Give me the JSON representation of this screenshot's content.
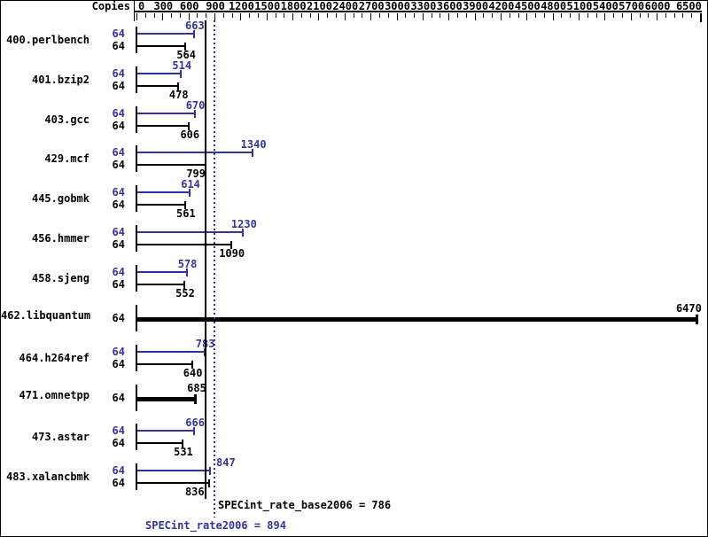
{
  "header": {
    "copies_label": "Copies"
  },
  "footer": {
    "base_result_text": "SPECint_rate_base2006 = 786",
    "peak_result_text": "SPECint_rate2006 = 894"
  },
  "chart_data": {
    "type": "bar",
    "orientation": "horizontal",
    "copies_column_header": "Copies",
    "axis": {
      "position": "top",
      "min": 0,
      "max": 6500,
      "minor_tick_step": 100,
      "major_tick_step": 300,
      "tick_labels": [
        0,
        300,
        600,
        900,
        1200,
        1500,
        1800,
        2100,
        2400,
        2700,
        3000,
        3300,
        3600,
        3900,
        4200,
        4500,
        4800,
        5100,
        5400,
        5700,
        6000,
        6500
      ]
    },
    "series_colors": {
      "peak": "#3333a0",
      "base": "#000000"
    },
    "benchmarks": [
      {
        "name": "400.perlbench",
        "copies": 64,
        "peak": 663,
        "base": 564,
        "bar": "pair"
      },
      {
        "name": "401.bzip2",
        "copies": 64,
        "peak": 514,
        "base": 478,
        "bar": "pair"
      },
      {
        "name": "403.gcc",
        "copies": 64,
        "peak": 670,
        "base": 606,
        "bar": "pair"
      },
      {
        "name": "429.mcf",
        "copies": 64,
        "peak": 1340,
        "base": 799,
        "bar": "pair"
      },
      {
        "name": "445.gobmk",
        "copies": 64,
        "peak": 614,
        "base": 561,
        "bar": "pair"
      },
      {
        "name": "456.hmmer",
        "copies": 64,
        "peak": 1230,
        "base": 1090,
        "bar": "pair"
      },
      {
        "name": "458.sjeng",
        "copies": 64,
        "peak": 578,
        "base": 552,
        "bar": "pair"
      },
      {
        "name": "462.libquantum",
        "copies": 64,
        "peak": 6470,
        "base": 6470,
        "bar": "single-thick"
      },
      {
        "name": "464.h264ref",
        "copies": 64,
        "peak": 783,
        "base": 640,
        "bar": "pair"
      },
      {
        "name": "471.omnetpp",
        "copies": 64,
        "peak": 685,
        "base": 685,
        "bar": "single-thick"
      },
      {
        "name": "473.astar",
        "copies": 64,
        "peak": 666,
        "base": 531,
        "bar": "pair"
      },
      {
        "name": "483.xalancbmk",
        "copies": 64,
        "peak": 847,
        "base": 836,
        "bar": "pair"
      }
    ],
    "reference_lines": [
      {
        "label": "SPECint_rate_base2006",
        "value": 786,
        "style": "solid",
        "color": "#000000"
      },
      {
        "label": "SPECint_rate2006",
        "value": 894,
        "style": "dotted",
        "color": "#3333a0"
      }
    ]
  }
}
